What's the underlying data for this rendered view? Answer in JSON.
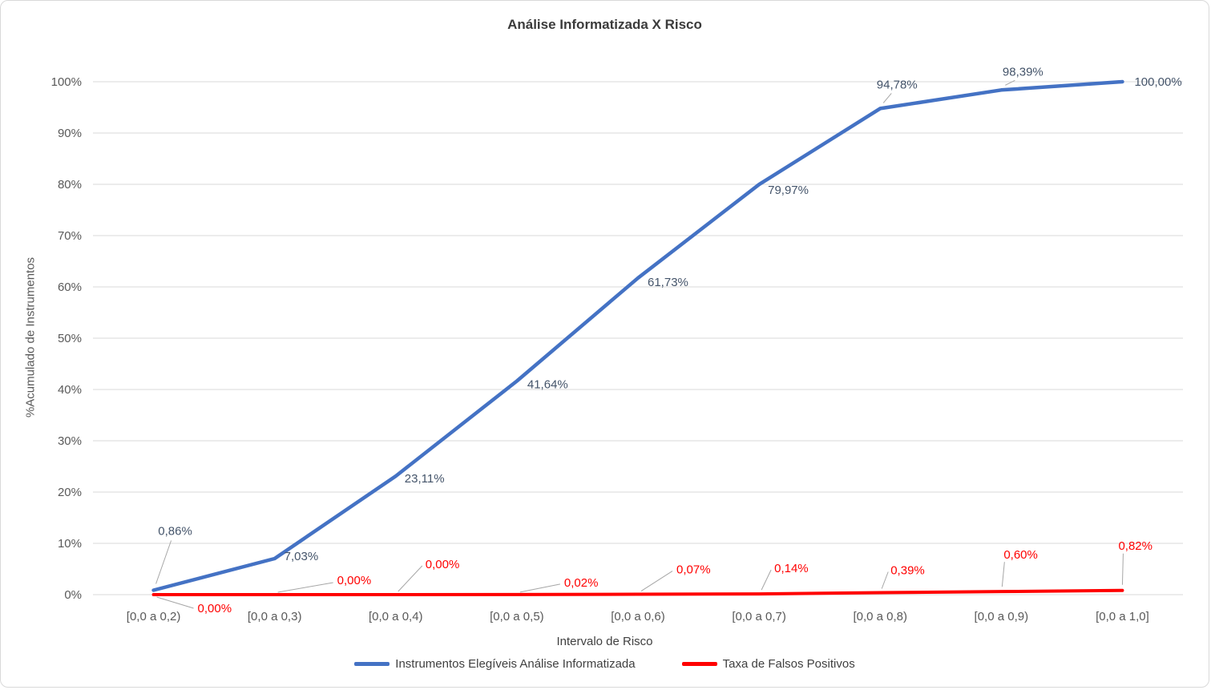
{
  "chart_data": {
    "type": "line",
    "title": "Análise Informatizada X Risco",
    "xlabel": "Intervalo de Risco",
    "ylabel": "%Acumulado de Instrumentos",
    "categories": [
      "[0,0 a 0,2)",
      "[0,0 a 0,3)",
      "[0,0 a 0,4)",
      "[0,0 a 0,5)",
      "[0,0 a 0,6)",
      "[0,0 a 0,7)",
      "[0,0 a 0,8)",
      "[0,0 a 0,9)",
      "[0,0 a 1,0]"
    ],
    "y_ticks": [
      "0%",
      "10%",
      "20%",
      "30%",
      "40%",
      "50%",
      "60%",
      "70%",
      "80%",
      "90%",
      "100%"
    ],
    "ylim": [
      0,
      100
    ],
    "grid": true,
    "legend_position": "bottom",
    "colors": {
      "gridline": "#D9D9D9",
      "axis_text": "#595959",
      "leader_line": "#A6A6A6",
      "title_text": "#3B3B3B"
    },
    "series": [
      {
        "name": "Instrumentos Elegíveis Análise Informatizada",
        "color": "#4472C4",
        "label_color": "#44546A",
        "values": [
          0.86,
          7.03,
          23.11,
          41.64,
          61.73,
          79.97,
          94.78,
          98.39,
          100.0
        ],
        "labels": [
          "0,86%",
          "7,03%",
          "23,11%",
          "41,64%",
          "61,73%",
          "79,97%",
          "94,78%",
          "98,39%",
          "100,00%"
        ]
      },
      {
        "name": "Taxa de Falsos Positivos",
        "color": "#FF0000",
        "label_color": "#FF0000",
        "values": [
          0.0,
          0.0,
          0.0,
          0.02,
          0.07,
          0.14,
          0.39,
          0.6,
          0.82
        ],
        "labels": [
          "0,00%",
          "0,00%",
          "0,00%",
          "0,02%",
          "0,07%",
          "0,14%",
          "0,39%",
          "0,60%",
          "0,82%"
        ]
      }
    ]
  }
}
